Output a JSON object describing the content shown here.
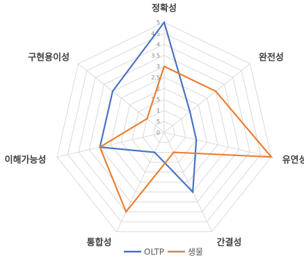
{
  "chart_data": {
    "type": "radar",
    "categories": [
      "정확성",
      "완전성",
      "유연성",
      "간결성",
      "통합성",
      "이해가능성",
      "구현용이성"
    ],
    "series": [
      {
        "name": "OLTP",
        "values": [
          5,
          1.5,
          1.5,
          3,
          1,
          3,
          3
        ],
        "color": "#4472c4"
      },
      {
        "name": "생물",
        "values": [
          3,
          3,
          5,
          1,
          4,
          3,
          1
        ],
        "color": "#ed7d31"
      }
    ],
    "rlim": [
      0,
      5
    ],
    "ticks": [
      "0",
      ".5",
      "1",
      "1.5",
      "2",
      "2.5",
      "3",
      "3.5",
      "4",
      "4.5",
      "5"
    ],
    "grid": true,
    "legend_position": "bottom"
  }
}
